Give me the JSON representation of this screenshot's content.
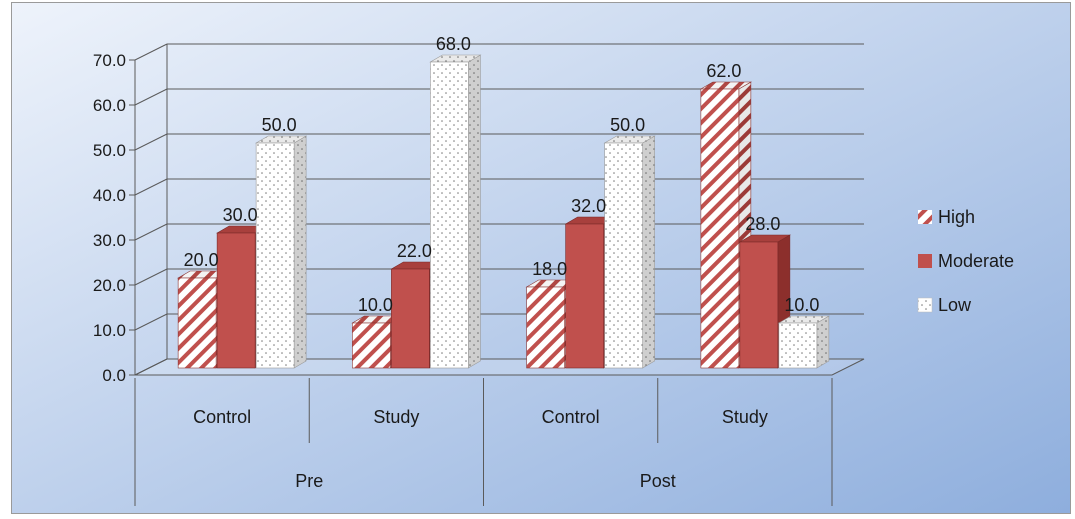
{
  "chart_data": {
    "type": "bar",
    "style": "3d-clustered-column",
    "groups": [
      {
        "label": "Pre",
        "categories": [
          "Control",
          "Study"
        ]
      },
      {
        "label": "Post",
        "categories": [
          "Control",
          "Study"
        ]
      }
    ],
    "categories": [
      "Control",
      "Study",
      "Control",
      "Study"
    ],
    "series": [
      {
        "name": "High",
        "pattern": "diagonal-stripes",
        "color": "#c0504d",
        "values": [
          20.0,
          10.0,
          18.0,
          62.0
        ],
        "labels": [
          "20.0",
          "10.0",
          "18.0",
          "62.0"
        ]
      },
      {
        "name": "Moderate",
        "pattern": "solid",
        "color": "#c0504d",
        "values": [
          30.0,
          22.0,
          32.0,
          28.0
        ],
        "labels": [
          "30.0",
          "22.0",
          "32.0",
          "28.0"
        ]
      },
      {
        "name": "Low",
        "pattern": "dots",
        "color": "#ffffff",
        "values": [
          50.0,
          68.0,
          50.0,
          10.0
        ],
        "labels": [
          "50.0",
          "68.0",
          "50.0",
          "10.0"
        ]
      }
    ],
    "y_ticks": [
      "0.0",
      "10.0",
      "20.0",
      "30.0",
      "40.0",
      "50.0",
      "60.0",
      "70.0"
    ],
    "ylim": [
      0,
      70
    ],
    "grid": true,
    "legend_position": "right",
    "background_gradient": [
      "#eef3fb",
      "#8eaedd"
    ]
  }
}
